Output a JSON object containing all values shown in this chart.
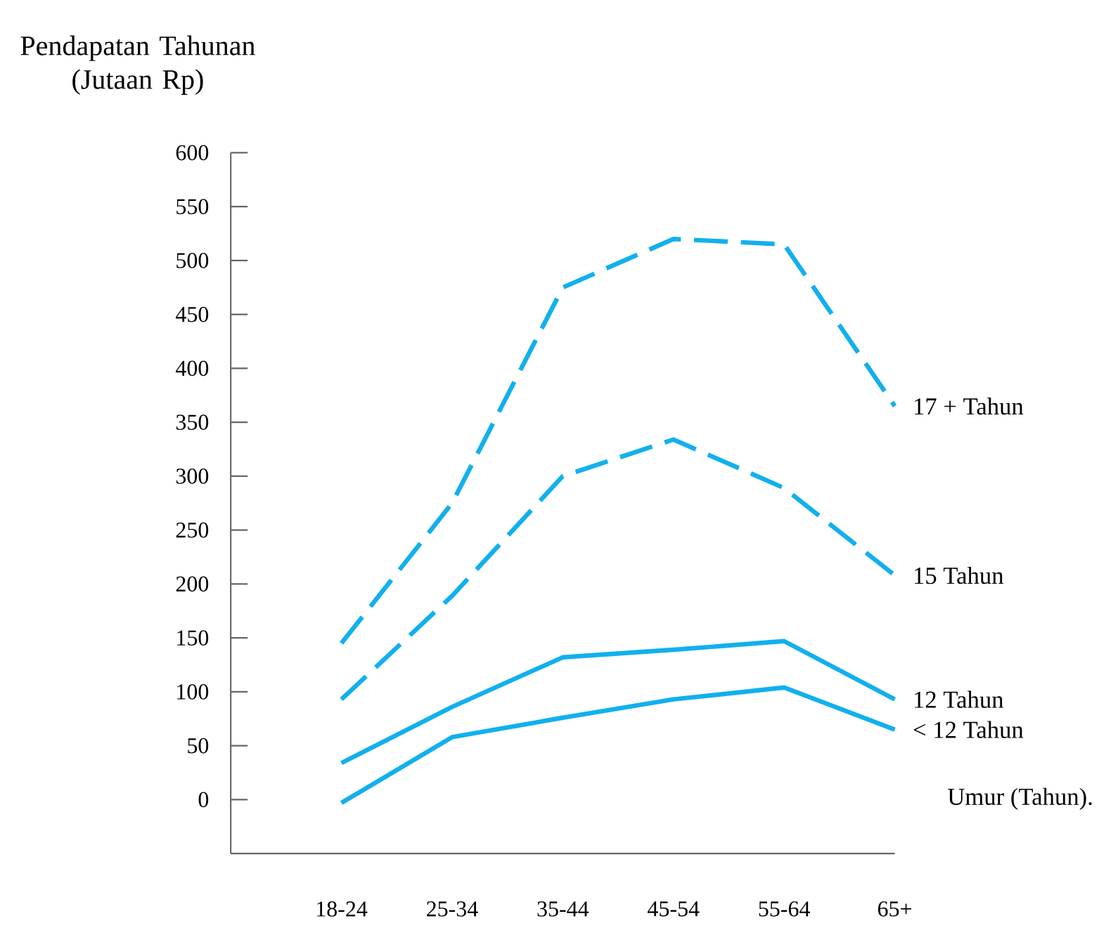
{
  "chart_data": {
    "type": "line",
    "ylabel": "Pendapatan Tahunan (Jutaan Rp)",
    "xlabel": "Umur (Tahun).",
    "categories": [
      "18-24",
      "25-34",
      "35-44",
      "45-54",
      "55-64",
      "65+"
    ],
    "series": [
      {
        "name": "17 + Tahun",
        "color": "#12b0ec",
        "line_style": "dashed",
        "values": [
          145,
          275,
          475,
          520,
          515,
          365
        ]
      },
      {
        "name": "15 Tahun",
        "color": "#12b0ec",
        "line_style": "dashed",
        "values": [
          93,
          189,
          300,
          334,
          289,
          208
        ]
      },
      {
        "name": "12 Tahun",
        "color": "#12b0ec",
        "line_style": "solid",
        "values": [
          34,
          86,
          132,
          139,
          147,
          93
        ]
      },
      {
        "name": "< 12 Tahun",
        "color": "#12b0ec",
        "line_style": "solid",
        "values": [
          -3,
          58,
          76,
          93,
          104,
          65
        ]
      }
    ],
    "ylim": [
      -50,
      600
    ],
    "yticks": [
      0,
      50,
      100,
      150,
      200,
      250,
      300,
      350,
      400,
      450,
      500,
      550,
      600
    ],
    "grid": false,
    "legend": false,
    "marker": "none"
  }
}
